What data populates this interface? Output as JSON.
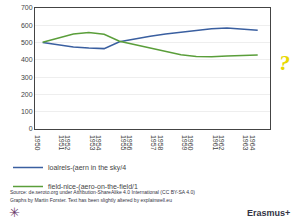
{
  "chart_data": {
    "type": "line",
    "x": [
      1950,
      1951,
      1952,
      1953,
      1954,
      1955,
      1956,
      1957,
      1958,
      1959,
      1960,
      1961,
      1962,
      1963,
      1964
    ],
    "xlim": [
      1949.5,
      1964.8
    ],
    "xticks": [
      1950,
      1951,
      1952,
      1953,
      1954,
      1955,
      1956,
      1957,
      1958,
      1959,
      1960,
      1961,
      1962,
      1963,
      1964
    ],
    "ylim": [
      0,
      700
    ],
    "yticks": [
      0,
      100,
      200,
      300,
      400,
      500,
      600,
      700
    ],
    "grid": true,
    "legend": "bottom",
    "series": [
      {
        "name": "loalrels-(aern in the sky/4",
        "color": "#3a5fa0",
        "values": [
          500,
          487,
          475,
          468,
          465,
          505,
          522,
          537,
          550,
          560,
          570,
          580,
          584,
          577,
          572
        ]
      },
      {
        "name": "field-nice-(aero-on-the-field/1",
        "color": "#5a9e3a",
        "values": [
          502,
          528,
          550,
          558,
          548,
          508,
          488,
          468,
          448,
          430,
          420,
          418,
          422,
          426,
          428
        ]
      }
    ],
    "annotations": [
      {
        "text": "?",
        "color": "#e8d800"
      },
      {
        "text": "✳",
        "color": "#6a3a6a"
      },
      {
        "text": "Source: de.seroto.org under Attribution-ShareAlike 4.0 International (CC BY-SA 4.0)"
      },
      {
        "text": "Graphs by Martin Forster. Text has been slightly altered by explainwell.eu"
      },
      {
        "text": "Erasmus+"
      }
    ]
  }
}
